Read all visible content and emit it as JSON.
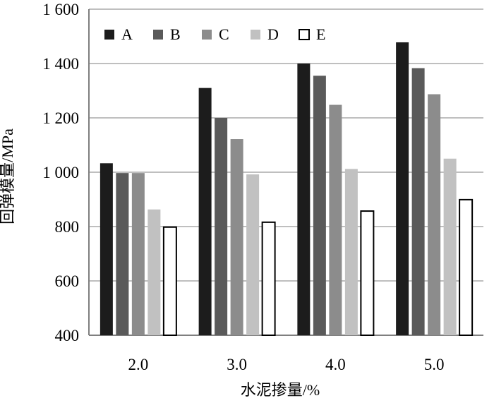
{
  "chart_data": {
    "type": "bar",
    "categories": [
      "2.0",
      "3.0",
      "4.0",
      "5.0"
    ],
    "series": [
      {
        "name": "A",
        "values": [
          1033,
          1310,
          1400,
          1478
        ],
        "color": "#1c1c1c"
      },
      {
        "name": "B",
        "values": [
          997,
          1200,
          1355,
          1383
        ],
        "color": "#5a5a5a"
      },
      {
        "name": "C",
        "values": [
          997,
          1122,
          1248,
          1287
        ],
        "color": "#8c8c8c"
      },
      {
        "name": "D",
        "values": [
          863,
          992,
          1012,
          1050
        ],
        "color": "#c1c1c1"
      },
      {
        "name": "E",
        "values": [
          798,
          816,
          857,
          899
        ],
        "color": "#ffffff",
        "stroke": "#000000"
      }
    ],
    "title": "",
    "xlabel": "水泥掺量/%",
    "ylabel": "回弹模量/MPa",
    "ylim": [
      400,
      1600
    ],
    "yticks": [
      400,
      600,
      800,
      1000,
      1200,
      1400,
      1600
    ],
    "ytick_labels": [
      "400",
      "600",
      "800",
      "1 000",
      "1 200",
      "1 400",
      "1 600"
    ],
    "grid": true,
    "legend_position": "top-left"
  }
}
